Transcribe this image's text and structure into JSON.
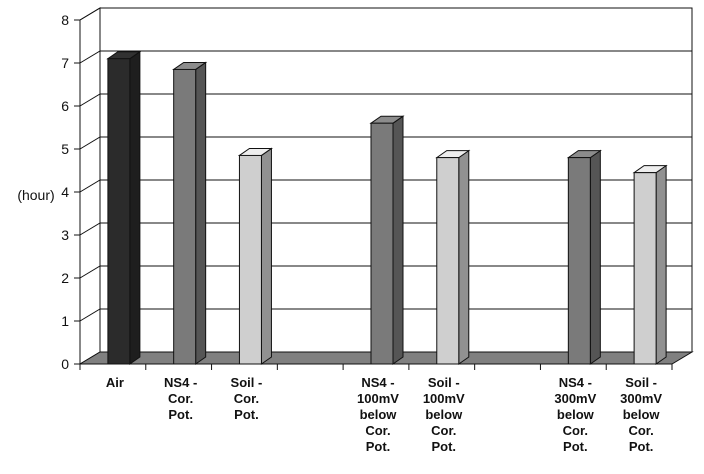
{
  "chart_data": {
    "type": "bar",
    "ylabel": "(hour)",
    "ylim": [
      0,
      8
    ],
    "yticks": [
      0,
      1,
      2,
      3,
      4,
      5,
      6,
      7,
      8
    ],
    "grid": true,
    "style": "3d",
    "categories": [
      "Air",
      "NS4 - Cor. Pot.",
      "Soil - Cor. Pot.",
      "",
      "NS4 - 100mV below Cor. Pot.",
      "Soil - 100mV below Cor. Pot.",
      "",
      "NS4 - 300mV below Cor. Pot.",
      "Soil - 300mV below Cor. Pot."
    ],
    "category_label_lines": [
      [
        "Air"
      ],
      [
        "NS4 -",
        "Cor.",
        "Pot."
      ],
      [
        "Soil -",
        "Cor.",
        "Pot."
      ],
      [],
      [
        "NS4 -",
        "100mV",
        "below",
        "Cor.",
        "Pot."
      ],
      [
        "Soil -",
        "100mV",
        "below",
        "Cor.",
        "Pot."
      ],
      [],
      [
        "NS4 -",
        "300mV",
        "below",
        "Cor.",
        "Pot."
      ],
      [
        "Soil -",
        "300mV",
        "below",
        "Cor.",
        "Pot."
      ]
    ],
    "values": [
      7.1,
      6.85,
      4.85,
      null,
      5.6,
      4.8,
      null,
      4.8,
      4.45
    ],
    "bar_colors": [
      "#2b2b2b",
      "#7a7a7a",
      "#cfcfcf",
      null,
      "#7a7a7a",
      "#cfcfcf",
      null,
      "#7a7a7a",
      "#cfcfcf"
    ]
  }
}
